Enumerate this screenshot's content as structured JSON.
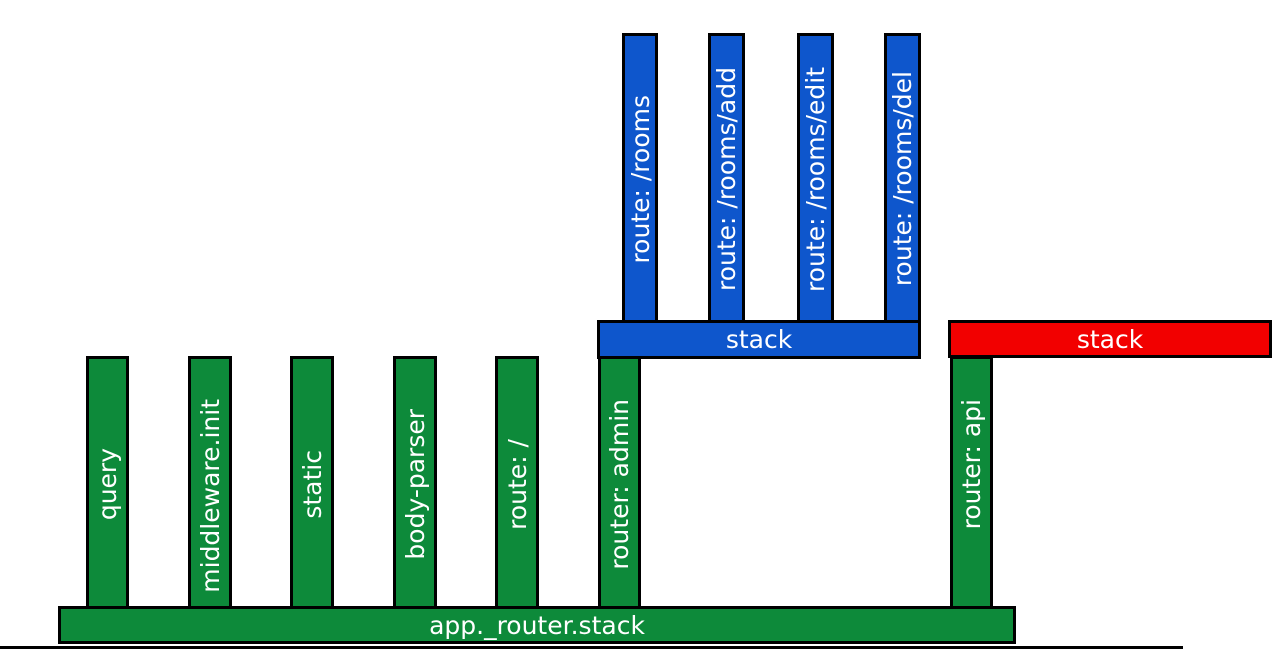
{
  "middleware_columns": [
    {
      "label": "query"
    },
    {
      "label": "middleware.init"
    },
    {
      "label": "static"
    },
    {
      "label": "body-parser"
    },
    {
      "label": "route: /"
    },
    {
      "label": "router: admin"
    },
    {
      "label": "router: api"
    }
  ],
  "admin_routes": [
    {
      "label": "route: /rooms"
    },
    {
      "label": "route: /rooms/add"
    },
    {
      "label": "route: /rooms/edit"
    },
    {
      "label": "route: /rooms/del"
    }
  ],
  "bars": {
    "app_stack": "app._router.stack",
    "admin_stack": "stack",
    "api_stack": "stack"
  },
  "colors": {
    "app_level": "#0d8a3a",
    "admin_router_level": "#0e56cc",
    "api_router_level": "#f20000",
    "outline": "#000000"
  }
}
